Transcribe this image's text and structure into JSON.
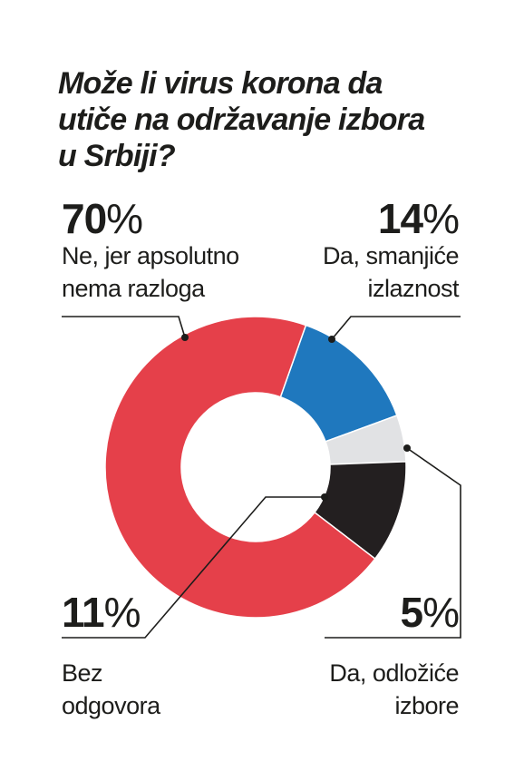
{
  "title_lines": [
    "Može li virus korona da",
    "utiče na održavanje izbora",
    "u Srbiji?"
  ],
  "chart_data": {
    "type": "pie",
    "title": "Može li virus korona da utiče na održavanje izbora u Srbiji?",
    "donut": true,
    "slices": [
      {
        "label": "Ne, jer apsolutno nema razloga",
        "value": 70,
        "display": "70",
        "color": "#e5404a"
      },
      {
        "label": "Da, smanjiće izlaznost",
        "value": 14,
        "display": "14",
        "color": "#1f78be"
      },
      {
        "label": "Da, odložiće izbore",
        "value": 5,
        "display": "5",
        "color": "#e1e2e4"
      },
      {
        "label": "Bez odgovora",
        "value": 11,
        "display": "11",
        "color": "#231f20"
      }
    ]
  },
  "callouts": {
    "ne": {
      "pct": "70",
      "sign": "%",
      "lines": [
        "Ne, jer apsolutno",
        "nema razloga"
      ]
    },
    "da_izlaznost": {
      "pct": "14",
      "sign": "%",
      "lines": [
        "Da, smanjiće",
        "izlaznost"
      ]
    },
    "da_odlozice": {
      "pct": "5",
      "sign": "%",
      "lines": [
        "Da, odložiće",
        "izbore"
      ]
    },
    "bez": {
      "pct": "11",
      "sign": "%",
      "lines": [
        "Bez",
        "odgovora"
      ]
    }
  }
}
